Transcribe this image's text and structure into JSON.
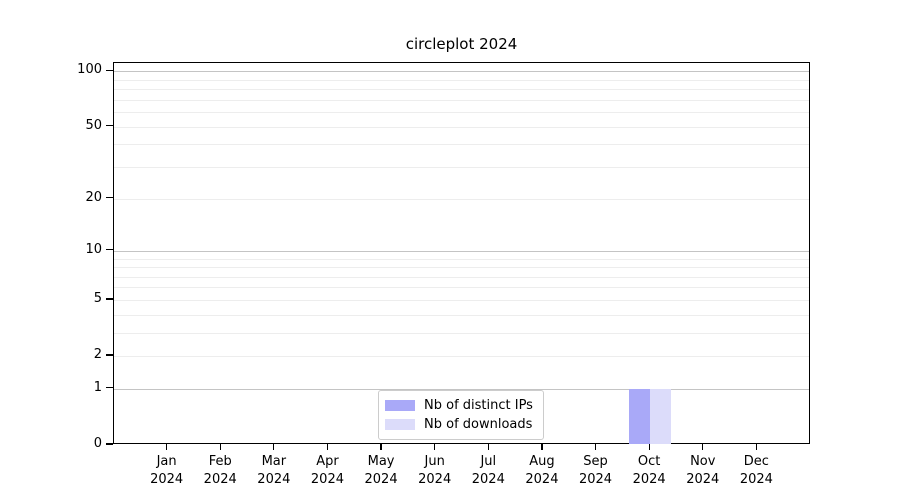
{
  "figure": {
    "background": "#ffffff",
    "text_color": "#000000"
  },
  "chart_data": {
    "type": "bar",
    "title": "circleplot 2024",
    "categories": [
      "Jan",
      "Feb",
      "Mar",
      "Apr",
      "May",
      "Jun",
      "Jul",
      "Aug",
      "Sep",
      "Oct",
      "Nov",
      "Dec"
    ],
    "category_year": "2024",
    "series": [
      {
        "name": "Nb of distinct IPs",
        "color": "#a9a9f8",
        "values": [
          0,
          0,
          0,
          0,
          0,
          0,
          0,
          0,
          0,
          1,
          0,
          0
        ]
      },
      {
        "name": "Nb of downloads",
        "color": "#dcdcfa",
        "values": [
          0,
          0,
          0,
          0,
          0,
          0,
          0,
          0,
          0,
          1,
          0,
          0
        ]
      }
    ],
    "xlabel": "",
    "ylabel": "",
    "y_axis": {
      "scale": "log1p",
      "tick_labels": [
        0,
        1,
        2,
        5,
        10,
        20,
        50,
        100
      ],
      "max": 111,
      "decade_gridlines": [
        1,
        10,
        100
      ],
      "minor_gridlines": [
        2,
        3,
        4,
        5,
        6,
        7,
        8,
        9,
        20,
        30,
        40,
        50,
        60,
        70,
        80,
        90
      ]
    },
    "grid": true,
    "legend_position": "bottom-center",
    "colors": {
      "major_grid": "#c4c4c4",
      "minor_grid": "#ededed",
      "axis": "#000000",
      "legend_border": "#cccccc"
    }
  }
}
